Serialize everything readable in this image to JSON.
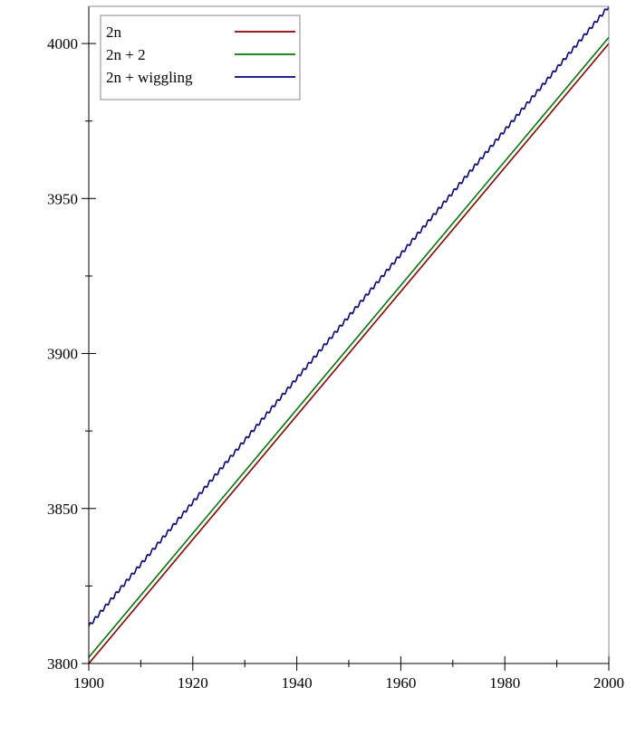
{
  "chart_data": {
    "type": "line",
    "title": "",
    "xlabel": "",
    "ylabel": "",
    "xlim": [
      1900,
      2000
    ],
    "ylim": [
      3800,
      4012
    ],
    "x_ticks_major": [
      1900,
      1920,
      1940,
      1960,
      1980,
      2000
    ],
    "x_ticks_minor": [
      1910,
      1930,
      1950,
      1970,
      1990
    ],
    "y_ticks_major": [
      3800,
      3850,
      3900,
      3950,
      4000
    ],
    "y_ticks_minor": [
      3825,
      3875,
      3925,
      3975
    ],
    "grid": false,
    "legend_position": "top-left",
    "series": [
      {
        "name": "2n",
        "color": "#8b0000",
        "formula": "2n",
        "x": [
          1900,
          2000
        ],
        "values": [
          3800,
          4000
        ]
      },
      {
        "name": "2n + 2",
        "color": "#007a00",
        "formula": "2n+2",
        "x": [
          1900,
          2000
        ],
        "values": [
          3802,
          4002
        ]
      },
      {
        "name": "2n + wiggling",
        "color": "#000080",
        "formula": "2n+wiggle",
        "x": [
          1900,
          2000
        ],
        "values": [
          3812,
          4012
        ]
      }
    ]
  }
}
